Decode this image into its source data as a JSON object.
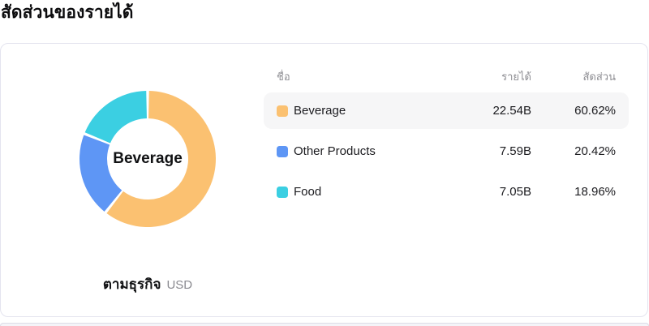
{
  "page_title": "สัดส่วนของรายได้",
  "card": {
    "center_label": "Beverage",
    "caption": {
      "label": "ตามธุรกิจ",
      "unit": "USD"
    },
    "table": {
      "headers": {
        "name": "ชื่อ",
        "revenue": "รายได้",
        "share": "สัดส่วน"
      },
      "rows": [
        {
          "name": "Beverage",
          "revenue": "22.54B",
          "share": "60.62%",
          "color": "#fbc171",
          "highlighted": true
        },
        {
          "name": "Other Products",
          "revenue": "7.59B",
          "share": "20.42%",
          "color": "#5e96f5",
          "highlighted": false
        },
        {
          "name": "Food",
          "revenue": "7.05B",
          "share": "18.96%",
          "color": "#3bcfe2",
          "highlighted": false
        }
      ]
    }
  },
  "chart_data": {
    "type": "pie",
    "subtype": "donut",
    "title": "สัดส่วนของรายได้",
    "caption": "ตามธุรกิจ",
    "unit": "USD",
    "categories": [
      "Beverage",
      "Other Products",
      "Food"
    ],
    "values_billions": [
      22.54,
      7.59,
      7.05
    ],
    "percentages": [
      60.62,
      20.42,
      18.96
    ],
    "colors": [
      "#fbc171",
      "#5e96f5",
      "#3bcfe2"
    ],
    "center_label": "Beverage",
    "start_angle_deg": 0,
    "direction": "clockwise",
    "inner_radius_ratio": 0.6,
    "slice_gap_deg": 2.4,
    "legend_position": "right-table"
  },
  "colors": {
    "card_border": "#e4e4ef",
    "row_highlight": "#f6f6f7",
    "header_text": "#8e8e93",
    "body_text": "#1b1b1f"
  }
}
